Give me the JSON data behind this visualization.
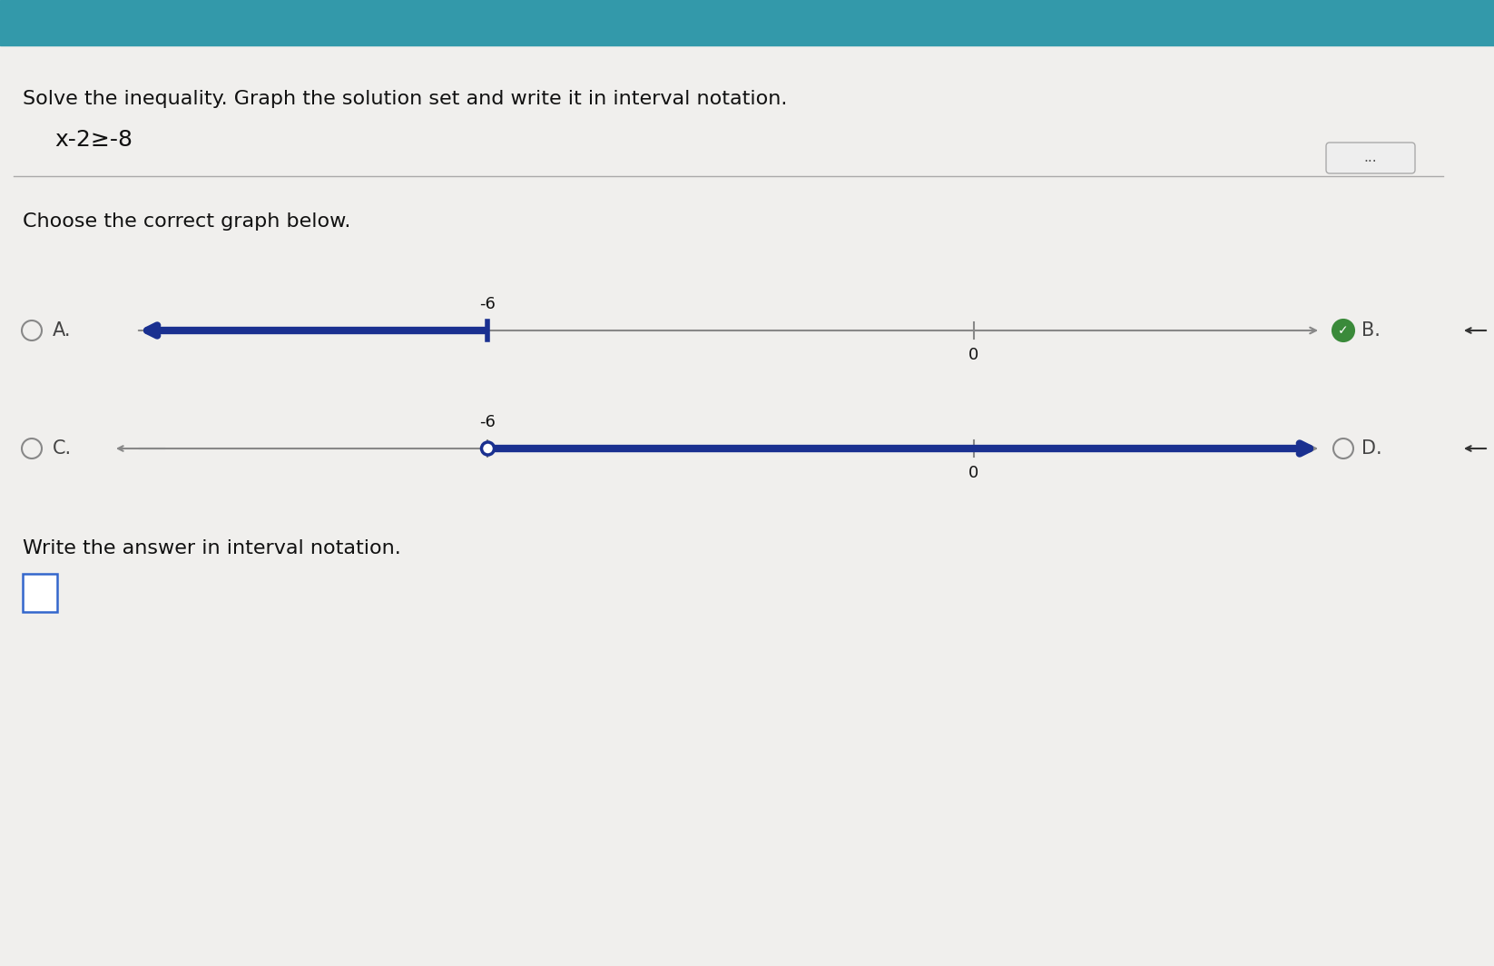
{
  "title_instruction": "Solve the inequality. Graph the solution set and write it in interval notation.",
  "inequality": "x-2≥-8",
  "choose_text": "Choose the correct graph below.",
  "write_text": "Write the answer in interval notation.",
  "bg_color": "#dcdcdc",
  "header_bg_color": "#3399aa",
  "line_color": "#888888",
  "arrow_color": "#1a3090",
  "divider_color": "#aaaaaa",
  "btn_color": "#eeeeee",
  "text_color": "#111111",
  "radio_color": "#888888",
  "selected_fill": "#3a8a3a",
  "tick_label_A": "-6",
  "tick2_label_A": "0",
  "tick_label_C": "-6",
  "tick2_label_C": "0"
}
